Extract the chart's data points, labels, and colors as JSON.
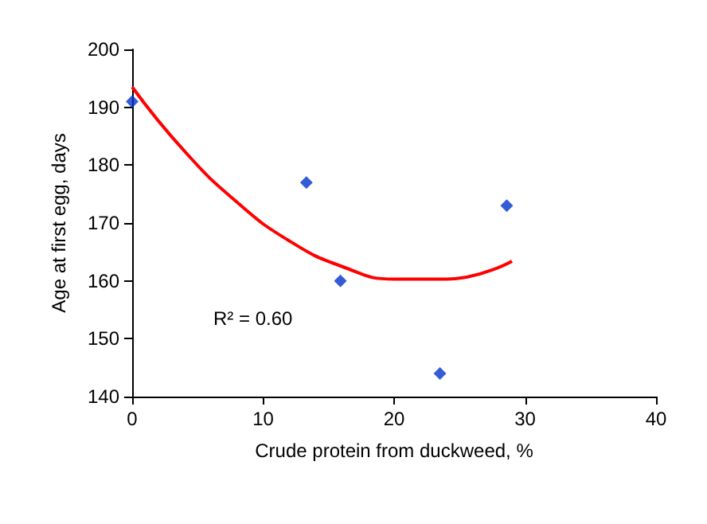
{
  "chart_data": {
    "type": "scatter",
    "xlabel": "Crude protein from duckweed, %",
    "ylabel": "Age at first egg, days",
    "series": [
      {
        "color": "#0033cc",
        "marker": "diamond",
        "x": [
          0,
          13.3,
          15.9,
          23.5,
          28.6
        ],
        "values": [
          191,
          177,
          160,
          144,
          173
        ]
      },
      {
        "type": "line",
        "color": "#ff0000",
        "marker": "none",
        "x": [
          0,
          4,
          8,
          12,
          16,
          20,
          24,
          29
        ],
        "values": [
          193.5,
          182.4,
          173.6,
          166.9,
          162.5,
          160.3,
          160.3,
          163.4
        ]
      }
    ],
    "annotations": [
      "R² = 0.60"
    ],
    "xlim": [
      0,
      40
    ],
    "xticks": [
      0,
      10,
      20,
      30,
      40
    ],
    "ylim": [
      140,
      200
    ],
    "yticks": [
      140,
      150,
      160,
      170,
      180,
      190,
      200
    ],
    "grid": false
  }
}
